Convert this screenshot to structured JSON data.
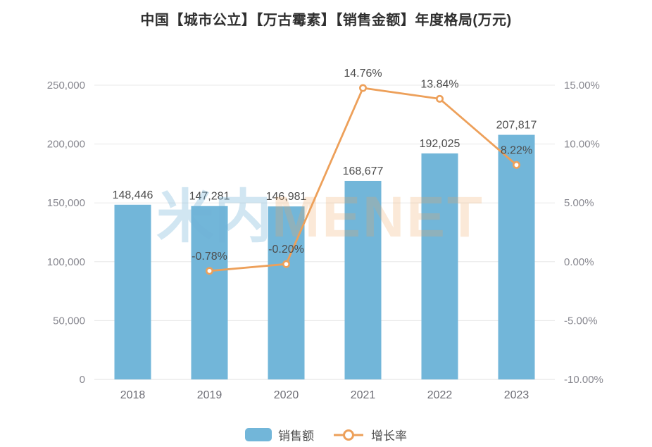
{
  "page": {
    "background": "#ffffff"
  },
  "watermark": {
    "logo": "米内",
    "brand": "MENET"
  },
  "colors": {
    "bar": "#72b6d9",
    "line": "#eda05a",
    "marker_fill": "#ffffff",
    "grid": "#e8e8e8",
    "baseline": "#e0e0e0",
    "axis_text": "#87878f",
    "category_text": "#6e6e76",
    "value_text": "#4d4d4d",
    "title_text": "#2f2f2f"
  },
  "chart_data": {
    "type": "bar",
    "subtype": "bar+line combo with dual y-axes",
    "title": "中国【城市公立】【万古霉素】【销售金额】年度格局(万元)",
    "categories": [
      "2018",
      "2019",
      "2020",
      "2021",
      "2022",
      "2023"
    ],
    "series": [
      {
        "name": "销售额",
        "type": "bar",
        "axis": "left",
        "values": [
          148446,
          147281,
          146981,
          168677,
          192025,
          207817
        ],
        "labels": [
          "148,446",
          "147,281",
          "146,981",
          "168,677",
          "192,025",
          "207,817"
        ]
      },
      {
        "name": "增长率",
        "type": "line",
        "axis": "right",
        "values": [
          null,
          -0.78,
          -0.2,
          14.76,
          13.84,
          8.22
        ],
        "labels": [
          null,
          "-0.78%",
          "-0.20%",
          "14.76%",
          "13.84%",
          "8.22%"
        ]
      }
    ],
    "left_axis": {
      "min": 0,
      "max": 250000,
      "step": 50000,
      "tick_labels": [
        "0",
        "50,000",
        "100,000",
        "150,000",
        "200,000",
        "250,000"
      ]
    },
    "right_axis": {
      "min": -10,
      "max": 15,
      "step": 5,
      "tick_labels": [
        "-10.00%",
        "-5.00%",
        "0.00%",
        "5.00%",
        "10.00%",
        "15.00%"
      ]
    },
    "grid": true,
    "legend_position": "bottom"
  }
}
